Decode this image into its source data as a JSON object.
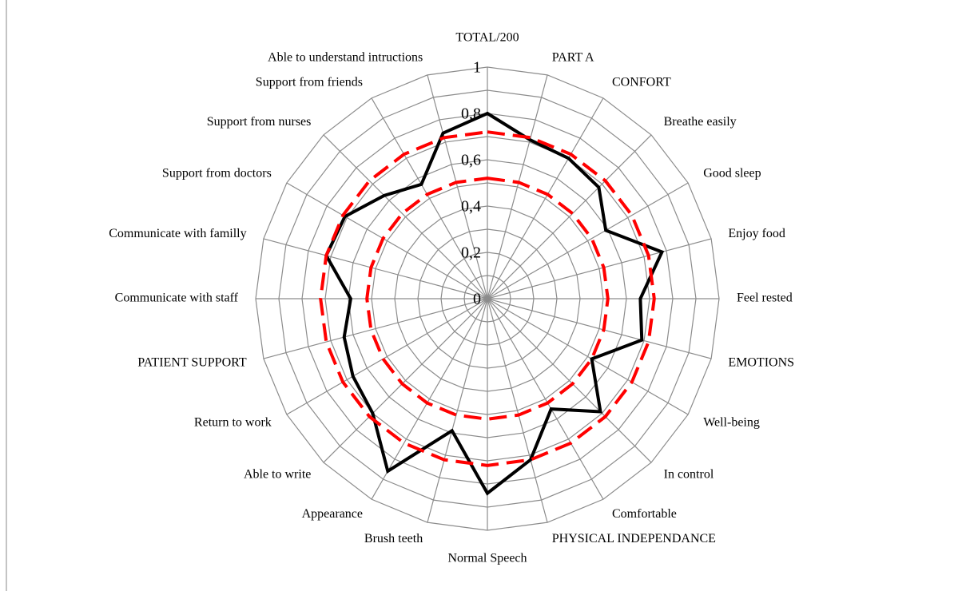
{
  "chart_data": {
    "type": "radar",
    "categories": [
      "TOTAL/200",
      "PART A",
      "CONFORT",
      "Breathe easily",
      "Good sleep",
      "Enjoy food",
      "Feel rested",
      "EMOTIONS",
      "Well-being",
      "In control",
      "Comfortable",
      "PHYSICAL INDEPENDANCE",
      "Normal Speech",
      "Brush teeth",
      "Appearance",
      "Able to write",
      "Return to work",
      "PATIENT SUPPORT",
      "Communicate with staff",
      "Communicate with familly",
      "Support from doctors",
      "Support from nurses",
      "Support from friends",
      "Able to understand intructions"
    ],
    "series": [
      {
        "color": "#000000",
        "dash": false,
        "values": [
          0.8,
          0.71,
          0.7,
          0.68,
          0.59,
          0.78,
          0.66,
          0.69,
          0.52,
          0.69,
          0.55,
          0.72,
          0.84,
          0.59,
          0.86,
          0.7,
          0.67,
          0.64,
          0.59,
          0.72,
          0.71,
          0.63,
          0.57,
          0.74
        ]
      },
      {
        "color": "#ff0000",
        "dash": true,
        "values": [
          0.72,
          0.72,
          0.72,
          0.72,
          0.72,
          0.72,
          0.72,
          0.72,
          0.72,
          0.72,
          0.72,
          0.72,
          0.72,
          0.72,
          0.72,
          0.72,
          0.72,
          0.72,
          0.72,
          0.72,
          0.72,
          0.72,
          0.72,
          0.72
        ]
      },
      {
        "color": "#ff0000",
        "dash": true,
        "values": [
          0.52,
          0.52,
          0.52,
          0.52,
          0.52,
          0.52,
          0.52,
          0.52,
          0.52,
          0.52,
          0.52,
          0.52,
          0.52,
          0.52,
          0.52,
          0.52,
          0.52,
          0.52,
          0.52,
          0.52,
          0.52,
          0.52,
          0.52,
          0.52
        ]
      }
    ],
    "ylim": [
      0,
      1
    ],
    "yticks": [
      0,
      {
        "value": 0.2,
        "label": "0,2"
      },
      {
        "value": 0.4,
        "label": "0,4"
      },
      {
        "value": 0.6,
        "label": "0,6"
      },
      {
        "value": 0.8,
        "label": "0,8"
      },
      1
    ],
    "grid": true,
    "grid_minor": true
  }
}
